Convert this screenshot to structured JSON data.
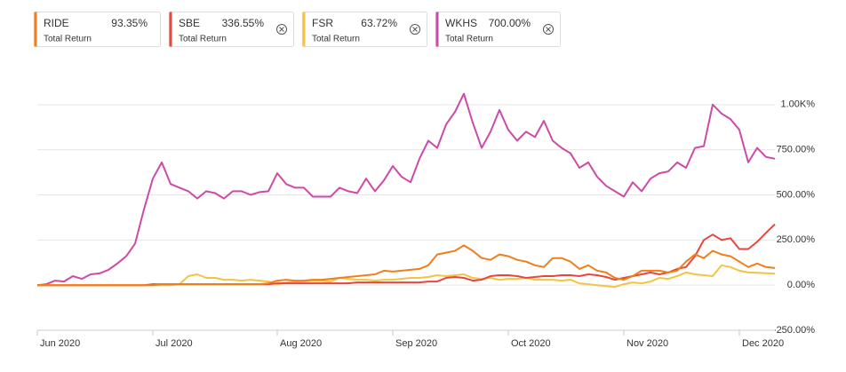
{
  "chart_data": {
    "type": "line",
    "legend_caption": "Total Return",
    "categories": [
      "Jun 2020",
      null,
      null,
      null,
      null,
      null,
      null,
      null,
      null,
      null,
      null,
      null,
      null,
      "Jul 2020",
      null,
      null,
      null,
      null,
      null,
      null,
      null,
      null,
      null,
      null,
      null,
      null,
      null,
      "Aug 2020",
      null,
      null,
      null,
      null,
      null,
      null,
      null,
      null,
      null,
      null,
      null,
      null,
      "Sep 2020",
      null,
      null,
      null,
      null,
      null,
      null,
      null,
      null,
      null,
      null,
      null,
      null,
      "Oct 2020",
      null,
      null,
      null,
      null,
      null,
      null,
      null,
      null,
      null,
      null,
      null,
      null,
      "Nov 2020",
      null,
      null,
      null,
      null,
      null,
      null,
      null,
      null,
      null,
      null,
      null,
      null,
      "Dec 2020",
      null,
      null,
      null,
      null
    ],
    "series": [
      {
        "name": "RIDE",
        "return_label": "93.35%",
        "color": "#f07f1a",
        "values": [
          0,
          0,
          0,
          0,
          0,
          0,
          0,
          0,
          0,
          0,
          0,
          0,
          0,
          0,
          5,
          5,
          5,
          5,
          5,
          5,
          5,
          5,
          5,
          5,
          5,
          5,
          10,
          25,
          30,
          25,
          25,
          30,
          30,
          35,
          40,
          45,
          50,
          55,
          60,
          80,
          75,
          80,
          85,
          90,
          110,
          170,
          180,
          190,
          220,
          190,
          150,
          140,
          170,
          160,
          140,
          130,
          110,
          100,
          150,
          150,
          130,
          90,
          110,
          80,
          70,
          40,
          30,
          50,
          80,
          80,
          80,
          70,
          80,
          130,
          170,
          150,
          190,
          170,
          160,
          130,
          100,
          120,
          100,
          95
        ]
      },
      {
        "name": "SBE",
        "return_label": "336.55%",
        "color": "#e8463c",
        "values": [
          0,
          0,
          0,
          0,
          0,
          0,
          0,
          0,
          0,
          0,
          0,
          0,
          0,
          5,
          5,
          5,
          5,
          5,
          5,
          5,
          5,
          5,
          5,
          5,
          5,
          5,
          5,
          10,
          10,
          10,
          10,
          10,
          10,
          10,
          10,
          10,
          15,
          15,
          15,
          15,
          15,
          15,
          15,
          15,
          20,
          20,
          40,
          45,
          40,
          25,
          30,
          50,
          55,
          55,
          50,
          40,
          45,
          50,
          50,
          55,
          55,
          50,
          60,
          55,
          45,
          30,
          40,
          50,
          60,
          70,
          60,
          70,
          90,
          100,
          160,
          250,
          280,
          250,
          260,
          200,
          200,
          240,
          290,
          337
        ]
      },
      {
        "name": "FSR",
        "return_label": "63.72%",
        "color": "#f5c342",
        "values": [
          0,
          0,
          0,
          0,
          0,
          0,
          0,
          0,
          0,
          0,
          0,
          0,
          0,
          0,
          0,
          0,
          5,
          50,
          60,
          40,
          40,
          30,
          30,
          25,
          30,
          25,
          20,
          5,
          15,
          20,
          20,
          25,
          25,
          20,
          40,
          35,
          30,
          30,
          25,
          30,
          30,
          35,
          40,
          40,
          45,
          55,
          50,
          55,
          60,
          40,
          35,
          40,
          30,
          35,
          35,
          40,
          30,
          30,
          30,
          25,
          30,
          10,
          5,
          0,
          -5,
          -10,
          5,
          15,
          10,
          20,
          40,
          35,
          50,
          70,
          60,
          55,
          50,
          110,
          100,
          80,
          70,
          68,
          66,
          64
        ]
      },
      {
        "name": "WKHS",
        "return_label": "700.00%",
        "color": "#cc4aa8",
        "values": [
          0,
          5,
          25,
          20,
          50,
          35,
          60,
          65,
          85,
          120,
          160,
          230,
          420,
          590,
          680,
          560,
          540,
          520,
          480,
          520,
          510,
          480,
          520,
          520,
          500,
          515,
          520,
          620,
          560,
          540,
          540,
          490,
          490,
          490,
          540,
          520,
          510,
          590,
          520,
          580,
          660,
          600,
          570,
          700,
          800,
          760,
          890,
          960,
          1060,
          900,
          760,
          850,
          970,
          860,
          800,
          850,
          820,
          910,
          800,
          760,
          730,
          650,
          680,
          600,
          550,
          520,
          490,
          570,
          520,
          590,
          620,
          630,
          680,
          650,
          760,
          770,
          1000,
          950,
          920,
          860,
          680,
          760,
          710,
          700
        ]
      }
    ],
    "ylim": [
      -250,
      1250
    ],
    "yticks": [
      {
        "value": -250,
        "label": "-250.00%"
      },
      {
        "value": 0,
        "label": "0.00%"
      },
      {
        "value": 250,
        "label": "250.00%"
      },
      {
        "value": 500,
        "label": "500.00%"
      },
      {
        "value": 750,
        "label": "750.00%"
      },
      {
        "value": 1000,
        "label": "1.00K%"
      }
    ],
    "grid": true
  }
}
